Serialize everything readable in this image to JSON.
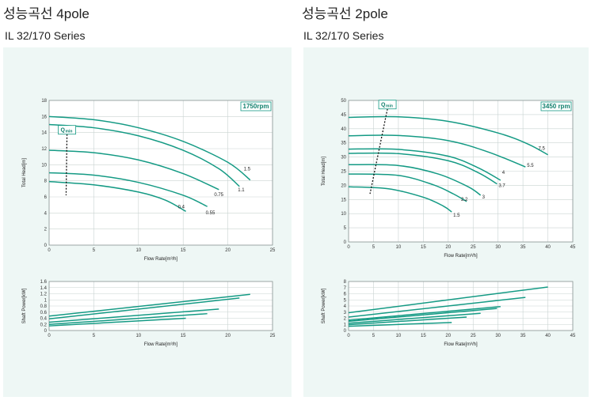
{
  "left": {
    "title": "성능곡선 4pole",
    "subtitle": "IL 32/170 Series"
  },
  "right": {
    "title": "성능곡선 2pole",
    "subtitle": "IL 32/170 Series"
  },
  "colors": {
    "curve": "#149a84",
    "panel_bg": "#eef7f5",
    "grid": "#c9d3d1",
    "speed_badge": "#0e7f6c"
  },
  "chart_data": [
    {
      "id": "head-4pole",
      "type": "line",
      "speed_label": "1750rpm",
      "qmin_label": "Q",
      "qmin_sub": "min",
      "xlabel": "Flow Rate[m³/h]",
      "ylabel": "Total Head[m]",
      "xlim": [
        0,
        25
      ],
      "ylim": [
        0,
        18
      ],
      "xticks": [
        0,
        5,
        10,
        15,
        20,
        25
      ],
      "yticks": [
        0,
        2,
        4,
        6,
        8,
        10,
        12,
        14,
        16,
        18
      ],
      "qmin_line": [
        [
          2,
          13.8
        ],
        [
          1.9,
          6.2
        ]
      ],
      "series": [
        {
          "label": "1.5",
          "points": [
            [
              0,
              16
            ],
            [
              5,
              15.6
            ],
            [
              10,
              14.6
            ],
            [
              15,
              12.9
            ],
            [
              20,
              10.3
            ],
            [
              22.5,
              8.1
            ]
          ]
        },
        {
          "label": "1.1",
          "points": [
            [
              0,
              15
            ],
            [
              5,
              14.6
            ],
            [
              10,
              13.6
            ],
            [
              15,
              11.8
            ],
            [
              19,
              9.5
            ],
            [
              21.3,
              7.3
            ]
          ]
        },
        {
          "label": "0.75",
          "points": [
            [
              0,
              11.8
            ],
            [
              5,
              11.5
            ],
            [
              10,
              10.6
            ],
            [
              15,
              8.9
            ],
            [
              19,
              6.9
            ]
          ]
        },
        {
          "label": "0.55",
          "points": [
            [
              0,
              9
            ],
            [
              5,
              8.7
            ],
            [
              10,
              7.8
            ],
            [
              15,
              6.2
            ],
            [
              17.7,
              4.8
            ]
          ]
        },
        {
          "label": "0.4",
          "points": [
            [
              0,
              7.9
            ],
            [
              5,
              7.5
            ],
            [
              10,
              6.6
            ],
            [
              13,
              5.6
            ],
            [
              15.3,
              4.2
            ]
          ]
        }
      ]
    },
    {
      "id": "power-4pole",
      "type": "line",
      "xlabel": "Flow Rate[m³/h]",
      "ylabel": "Shaft Power[kW]",
      "xlim": [
        0,
        25
      ],
      "ylim": [
        0,
        1.6
      ],
      "xticks": [
        0,
        5,
        10,
        15,
        20,
        25
      ],
      "yticks": [
        0,
        0.2,
        0.4,
        0.6,
        0.8,
        1.0,
        1.2,
        1.4,
        1.6
      ],
      "series": [
        {
          "label": "1.5",
          "points": [
            [
              0,
              0.47
            ],
            [
              22.5,
              1.18
            ]
          ]
        },
        {
          "label": "1.1",
          "points": [
            [
              0,
              0.38
            ],
            [
              21.3,
              1.06
            ]
          ]
        },
        {
          "label": "0.75",
          "points": [
            [
              0,
              0.27
            ],
            [
              19,
              0.7
            ]
          ]
        },
        {
          "label": "0.55",
          "points": [
            [
              0,
              0.2
            ],
            [
              17.7,
              0.55
            ]
          ]
        },
        {
          "label": "0.4",
          "points": [
            [
              0,
              0.15
            ],
            [
              15.3,
              0.4
            ]
          ]
        }
      ]
    },
    {
      "id": "head-2pole",
      "type": "line",
      "speed_label": "3450 rpm",
      "qmin_label": "Q",
      "qmin_sub": "min",
      "xlabel": "Flow Rate[m³/h]",
      "ylabel": "Total Head[m]",
      "xlim": [
        0,
        45
      ],
      "ylim": [
        0,
        50
      ],
      "xticks": [
        0,
        5,
        10,
        15,
        20,
        25,
        30,
        35,
        40,
        45
      ],
      "yticks": [
        0,
        5,
        10,
        15,
        20,
        25,
        30,
        35,
        40,
        45,
        50
      ],
      "qmin_line": [
        [
          7.8,
          47
        ],
        [
          4.3,
          17
        ]
      ],
      "series": [
        {
          "label": "7.5",
          "points": [
            [
              0,
              44
            ],
            [
              10,
              44.2
            ],
            [
              20,
              42.6
            ],
            [
              30,
              38.5
            ],
            [
              36,
              34.6
            ],
            [
              40,
              30.8
            ]
          ]
        },
        {
          "label": "5.5",
          "points": [
            [
              0,
              37.5
            ],
            [
              10,
              37.6
            ],
            [
              20,
              35.8
            ],
            [
              28,
              31.8
            ],
            [
              35.5,
              26.5
            ]
          ]
        },
        {
          "label": "4",
          "points": [
            [
              0,
              32.8
            ],
            [
              10,
              32.7
            ],
            [
              20,
              30.3
            ],
            [
              26,
              26.2
            ],
            [
              30.5,
              21.8
            ]
          ]
        },
        {
          "label": "3.7",
          "points": [
            [
              0,
              31.3
            ],
            [
              10,
              31.2
            ],
            [
              20,
              28.7
            ],
            [
              26,
              24.5
            ],
            [
              29.8,
              20.5
            ]
          ]
        },
        {
          "label": "3",
          "points": [
            [
              0,
              27.3
            ],
            [
              10,
              27
            ],
            [
              18,
              24
            ],
            [
              24,
              19.5
            ],
            [
              26.5,
              16.5
            ]
          ]
        },
        {
          "label": "2.2",
          "points": [
            [
              0,
              24
            ],
            [
              10,
              23.5
            ],
            [
              17,
              20.2
            ],
            [
              21,
              17
            ],
            [
              23.7,
              14.3
            ]
          ]
        },
        {
          "label": "1.5",
          "points": [
            [
              0,
              19.5
            ],
            [
              8,
              18.8
            ],
            [
              15,
              15.8
            ],
            [
              19,
              12.7
            ],
            [
              20.7,
              10.6
            ]
          ]
        }
      ]
    },
    {
      "id": "power-2pole",
      "type": "line",
      "xlabel": "Flow Rate[m³/h]",
      "ylabel": "Shaft Power[kW]",
      "xlim": [
        0,
        45
      ],
      "ylim": [
        0,
        8
      ],
      "xticks": [
        0,
        5,
        10,
        15,
        20,
        25,
        30,
        35,
        40,
        45
      ],
      "yticks": [
        0,
        1.0,
        2.0,
        3.0,
        4.0,
        5.0,
        6.0,
        7.0,
        8.0
      ],
      "series": [
        {
          "label": "7.5",
          "points": [
            [
              0,
              2.9
            ],
            [
              40,
              7.1
            ]
          ]
        },
        {
          "label": "5.5",
          "points": [
            [
              0,
              2.2
            ],
            [
              35.5,
              5.4
            ]
          ]
        },
        {
          "label": "4",
          "points": [
            [
              0,
              1.7
            ],
            [
              30.5,
              3.9
            ]
          ]
        },
        {
          "label": "3.7",
          "points": [
            [
              0,
              1.5
            ],
            [
              29.8,
              3.6
            ]
          ]
        },
        {
          "label": "3",
          "points": [
            [
              0,
              1.2
            ],
            [
              26.5,
              2.8
            ]
          ]
        },
        {
          "label": "2.2",
          "points": [
            [
              0,
              0.95
            ],
            [
              23.7,
              2.2
            ]
          ]
        },
        {
          "label": "1.5",
          "points": [
            [
              0,
              0.7
            ],
            [
              20.7,
              1.3
            ]
          ]
        }
      ]
    }
  ]
}
